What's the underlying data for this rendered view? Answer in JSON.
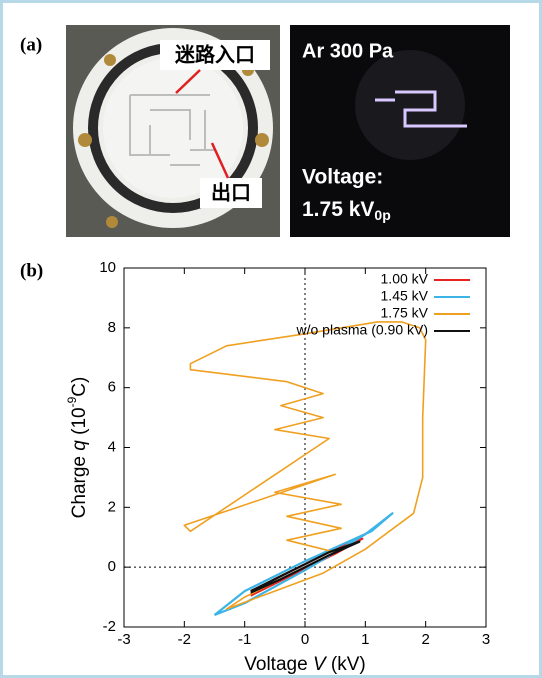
{
  "panels": {
    "a": "(a)",
    "b": "(b)"
  },
  "photo_left": {
    "entrance": "迷路入口",
    "exit": "出口"
  },
  "photo_right": {
    "gas": "Ar 300 Pa",
    "voltage_label": "Voltage:",
    "voltage_value": [
      "1.75 kV",
      "0p"
    ]
  },
  "chart_data": {
    "type": "line",
    "xlabel": [
      "Voltage ",
      "V",
      " (kV)"
    ],
    "ylabel": [
      "Charge ",
      "q",
      " (10",
      "-9",
      "C)"
    ],
    "xlim": [
      -3,
      3
    ],
    "xticks": [
      -3,
      -2,
      -1,
      0,
      1,
      2,
      3
    ],
    "ylim": [
      -2,
      10
    ],
    "yticks": [
      -2,
      0,
      2,
      4,
      6,
      8,
      10
    ],
    "zero_lines": true,
    "legend": "top-right",
    "series": [
      {
        "name": "1.00 kV",
        "color": "#e8231f",
        "x": [
          -0.9,
          -0.5,
          0,
          0.5,
          0.95,
          0.5,
          0,
          -0.5,
          -0.9
        ],
        "values": [
          -0.95,
          -0.55,
          -0.05,
          0.45,
          0.95,
          0.6,
          0.1,
          -0.4,
          -0.9
        ]
      },
      {
        "name": "1.45 kV",
        "color": "#3cb4e6",
        "x": [
          -1.5,
          -1.0,
          0,
          1.0,
          1.45,
          1.1,
          0,
          -1.0,
          -1.5
        ],
        "values": [
          -1.6,
          -1.2,
          -0.1,
          1.1,
          1.8,
          1.2,
          0.2,
          -0.8,
          -1.6
        ]
      },
      {
        "name": "1.75 kV",
        "color": "#f0a020",
        "x": [
          0,
          0.5,
          -0.3,
          0.6,
          -0.3,
          0.6,
          -0.5,
          0.5,
          -2.0,
          -1.9,
          0.4,
          -0.5,
          0.3,
          -0.4,
          0.3,
          -0.3,
          -1.9,
          -1.9,
          -1.3,
          0,
          1.2,
          1.6,
          1.9,
          2.0,
          1.95,
          1.95,
          1.8,
          1.0,
          0.3,
          -0.5,
          -1.3,
          -1.0,
          0
        ],
        "values": [
          0,
          0.5,
          0.9,
          1.3,
          1.7,
          2.1,
          2.5,
          3.1,
          1.4,
          1.2,
          4.3,
          4.6,
          5.0,
          5.4,
          5.8,
          6.2,
          6.6,
          6.8,
          7.4,
          7.8,
          8.2,
          8.2,
          8.0,
          7.6,
          5.0,
          3.0,
          1.8,
          0.6,
          -0.2,
          -0.8,
          -1.4,
          -1.0,
          0
        ]
      },
      {
        "name": "w/o plasma (0.90 kV)",
        "color": "#111111",
        "x": [
          -0.9,
          -0.4,
          0,
          0.4,
          0.9,
          0.4,
          0,
          -0.4,
          -0.9
        ],
        "values": [
          -0.85,
          -0.4,
          0,
          0.4,
          0.85,
          0.5,
          0.1,
          -0.3,
          -0.8
        ]
      }
    ]
  }
}
